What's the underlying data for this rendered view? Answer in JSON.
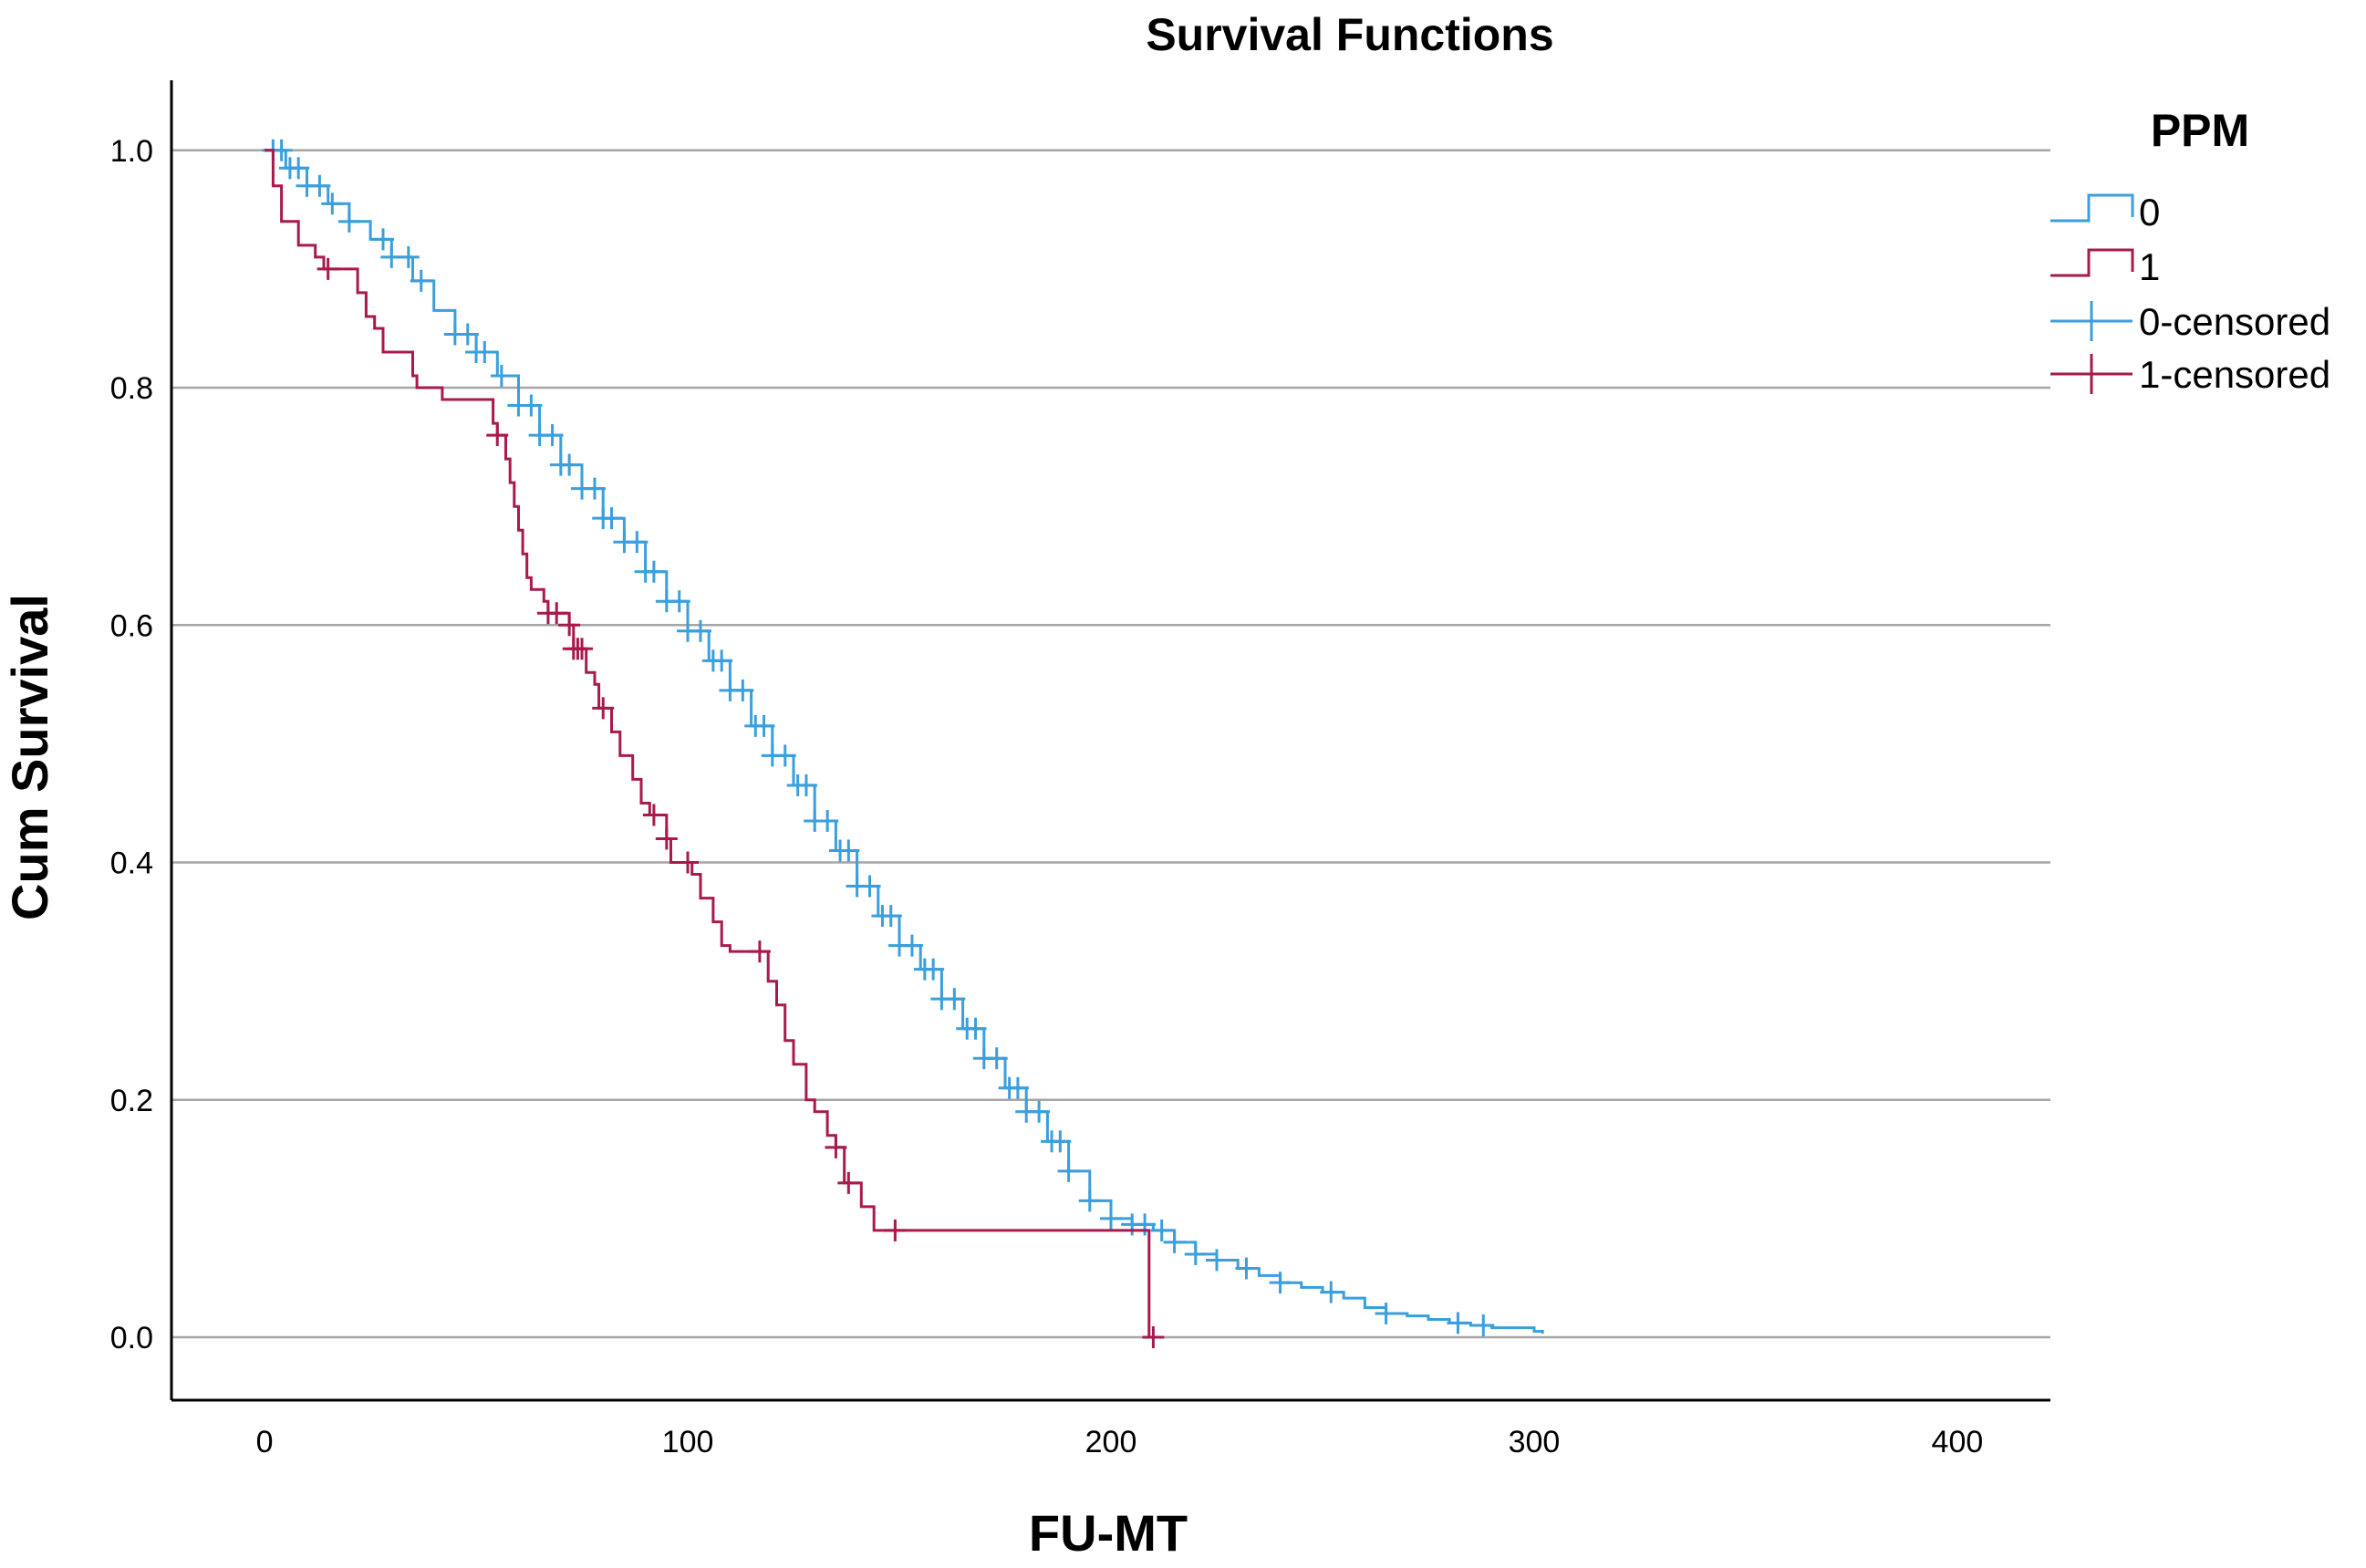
{
  "chart_data": {
    "type": "line",
    "title": "Survival Functions",
    "xlabel": "FU-MT",
    "ylabel": "Cum Survival",
    "xlim": [
      -22,
      422
    ],
    "ylim": [
      -0.053,
      1.059
    ],
    "x_ticks": [
      0,
      100,
      200,
      300,
      400
    ],
    "x_tick_labels": [
      "0",
      "100",
      "200",
      "300",
      "400"
    ],
    "y_ticks": [
      0.0,
      0.2,
      0.4,
      0.6,
      0.8,
      1.0
    ],
    "y_tick_labels": [
      "0.0",
      "0.2",
      "0.4",
      "0.6",
      "0.8",
      "1.0"
    ],
    "grid": "horizontal",
    "legend": {
      "title": "PPM",
      "placement": "right",
      "entries": [
        {
          "label": "0",
          "kind": "step",
          "color": "#3a9fdc"
        },
        {
          "label": "1",
          "kind": "step",
          "color": "#a8194e"
        },
        {
          "label": "0-censored",
          "kind": "censor",
          "color": "#3a9fdc"
        },
        {
          "label": "1-censored",
          "kind": "censor",
          "color": "#a8194e"
        }
      ]
    },
    "series": [
      {
        "name": "0",
        "color": "#3a9fdc",
        "step": [
          [
            0,
            1.0
          ],
          [
            5,
            0.985
          ],
          [
            10,
            0.97
          ],
          [
            15,
            0.955
          ],
          [
            20,
            0.94
          ],
          [
            25,
            0.925
          ],
          [
            30,
            0.91
          ],
          [
            35,
            0.89
          ],
          [
            40,
            0.865
          ],
          [
            45,
            0.845
          ],
          [
            50,
            0.83
          ],
          [
            55,
            0.81
          ],
          [
            60,
            0.785
          ],
          [
            65,
            0.76
          ],
          [
            70,
            0.735
          ],
          [
            75,
            0.715
          ],
          [
            80,
            0.69
          ],
          [
            85,
            0.67
          ],
          [
            90,
            0.645
          ],
          [
            95,
            0.62
          ],
          [
            100,
            0.595
          ],
          [
            105,
            0.57
          ],
          [
            110,
            0.545
          ],
          [
            115,
            0.515
          ],
          [
            120,
            0.49
          ],
          [
            125,
            0.465
          ],
          [
            130,
            0.435
          ],
          [
            135,
            0.41
          ],
          [
            140,
            0.38
          ],
          [
            145,
            0.355
          ],
          [
            150,
            0.33
          ],
          [
            155,
            0.31
          ],
          [
            160,
            0.285
          ],
          [
            165,
            0.26
          ],
          [
            170,
            0.235
          ],
          [
            175,
            0.21
          ],
          [
            180,
            0.19
          ],
          [
            185,
            0.165
          ],
          [
            190,
            0.14
          ],
          [
            195,
            0.115
          ],
          [
            200,
            0.1
          ],
          [
            205,
            0.095
          ],
          [
            210,
            0.09
          ],
          [
            215,
            0.08
          ],
          [
            220,
            0.07
          ],
          [
            225,
            0.065
          ],
          [
            230,
            0.058
          ],
          [
            235,
            0.052
          ],
          [
            240,
            0.046
          ],
          [
            245,
            0.042
          ],
          [
            250,
            0.038
          ],
          [
            255,
            0.033
          ],
          [
            260,
            0.025
          ],
          [
            265,
            0.02
          ],
          [
            270,
            0.018
          ],
          [
            275,
            0.015
          ],
          [
            280,
            0.012
          ],
          [
            285,
            0.01
          ],
          [
            290,
            0.008
          ],
          [
            300,
            0.005
          ],
          [
            302,
            0.003
          ]
        ],
        "censored_x": [
          2,
          4,
          6,
          8,
          10,
          13,
          16,
          20,
          28,
          30,
          34,
          37,
          45,
          48,
          50,
          52,
          56,
          60,
          63,
          65,
          68,
          70,
          72,
          75,
          78,
          80,
          82,
          85,
          88,
          90,
          92,
          95,
          98,
          100,
          103,
          106,
          108,
          110,
          113,
          116,
          118,
          120,
          123,
          126,
          128,
          130,
          133,
          136,
          138,
          140,
          143,
          146,
          148,
          150,
          153,
          156,
          158,
          160,
          163,
          166,
          168,
          170,
          173,
          176,
          178,
          180,
          183,
          186,
          188,
          190,
          195,
          200,
          205,
          208,
          212,
          215,
          220,
          225,
          232,
          240,
          252,
          265,
          282,
          288
        ]
      },
      {
        "name": "1",
        "color": "#a8194e",
        "step": [
          [
            0,
            1.0
          ],
          [
            2,
            0.97
          ],
          [
            4,
            0.94
          ],
          [
            8,
            0.92
          ],
          [
            12,
            0.91
          ],
          [
            14,
            0.9
          ],
          [
            22,
            0.88
          ],
          [
            24,
            0.86
          ],
          [
            26,
            0.85
          ],
          [
            28,
            0.83
          ],
          [
            35,
            0.81
          ],
          [
            36,
            0.8
          ],
          [
            42,
            0.79
          ],
          [
            54,
            0.77
          ],
          [
            55,
            0.76
          ],
          [
            57,
            0.74
          ],
          [
            58,
            0.72
          ],
          [
            59,
            0.7
          ],
          [
            60,
            0.68
          ],
          [
            61,
            0.66
          ],
          [
            62,
            0.64
          ],
          [
            63,
            0.63
          ],
          [
            66,
            0.62
          ],
          [
            67,
            0.61
          ],
          [
            72,
            0.6
          ],
          [
            73,
            0.58
          ],
          [
            76,
            0.56
          ],
          [
            78,
            0.55
          ],
          [
            79,
            0.53
          ],
          [
            82,
            0.51
          ],
          [
            84,
            0.49
          ],
          [
            87,
            0.47
          ],
          [
            89,
            0.45
          ],
          [
            91,
            0.44
          ],
          [
            95,
            0.42
          ],
          [
            96,
            0.4
          ],
          [
            101,
            0.39
          ],
          [
            103,
            0.37
          ],
          [
            106,
            0.35
          ],
          [
            108,
            0.33
          ],
          [
            110,
            0.325
          ],
          [
            117,
            0.325
          ],
          [
            119,
            0.3
          ],
          [
            121,
            0.28
          ],
          [
            123,
            0.25
          ],
          [
            125,
            0.23
          ],
          [
            128,
            0.2
          ],
          [
            130,
            0.19
          ],
          [
            133,
            0.17
          ],
          [
            135,
            0.16
          ],
          [
            137,
            0.13
          ],
          [
            141,
            0.11
          ],
          [
            144,
            0.09
          ],
          [
            148,
            0.09
          ],
          [
            209,
            0.09
          ],
          [
            209,
            0.0
          ]
        ],
        "censored_x": [
          15,
          55,
          67,
          69,
          72,
          73,
          74,
          75,
          80,
          92,
          95,
          100,
          117,
          135,
          138,
          149,
          210
        ]
      }
    ]
  }
}
